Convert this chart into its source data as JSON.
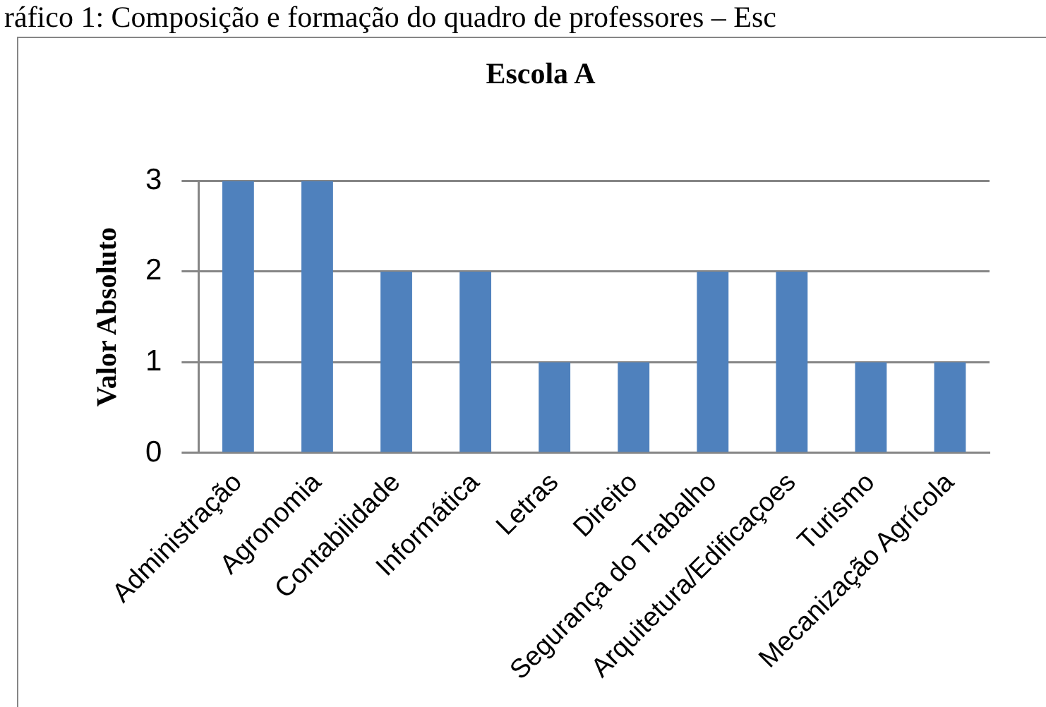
{
  "chart_data": {
    "type": "bar",
    "title": "Escola A",
    "annotations": [
      "ráfico 1: Composição e formação do quadro de professores – Esc"
    ],
    "categories": [
      "Administração",
      "Agronomia",
      "Contabilidade",
      "Informática",
      "Letras",
      "Direito",
      "Segurança do Trabalho",
      "Arquitetura/Edificaçoes",
      "Turismo",
      "Mecanização Agrícola"
    ],
    "values": [
      3,
      3,
      2,
      2,
      1,
      1,
      2,
      2,
      1,
      1
    ],
    "color": "#4f81bd",
    "ylabel": "Valor Absoluto",
    "ylim": [
      0,
      3
    ],
    "yticks": [
      0,
      1,
      2,
      3
    ],
    "grid": "y"
  }
}
